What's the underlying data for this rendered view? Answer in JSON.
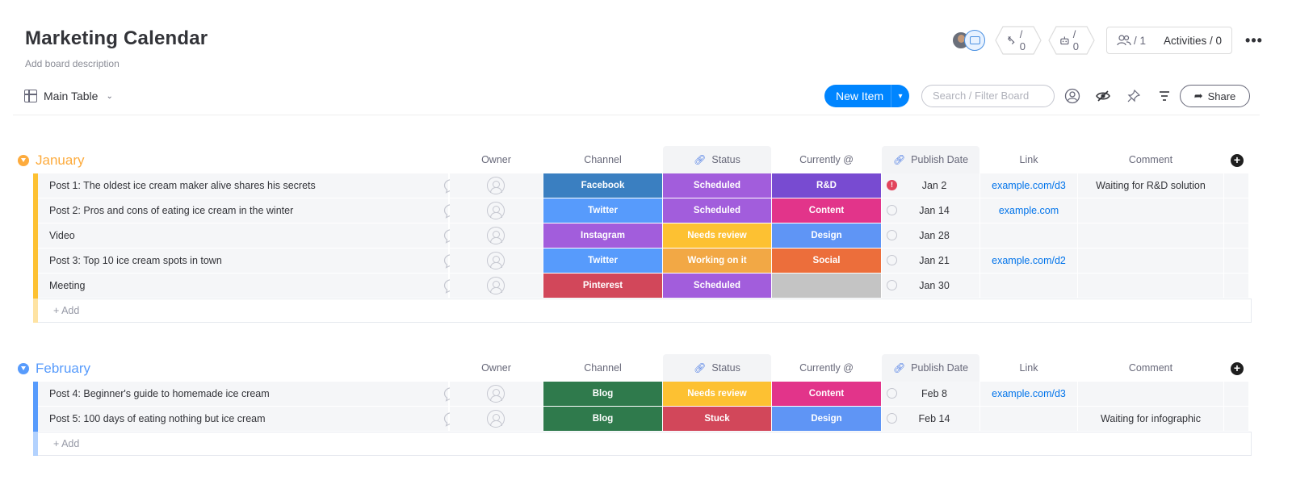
{
  "board": {
    "title": "Marketing Calendar",
    "description": "Add board description"
  },
  "header": {
    "integrations_count": "/ 0",
    "automations_count": "/ 0",
    "members_count": "/ 1",
    "activities_label": "Activities / 0"
  },
  "toolbar": {
    "view_label": "Main Table",
    "new_item_label": "New Item",
    "search_placeholder": "Search / Filter Board",
    "share_label": "Share"
  },
  "columns": {
    "owner": "Owner",
    "channel": "Channel",
    "status": "Status",
    "currently": "Currently @",
    "publish_date": "Publish Date",
    "link": "Link",
    "comment": "Comment"
  },
  "add_label": "+ Add",
  "colors": {
    "january": "#fdab3d",
    "february": "#579bfc",
    "blue_accent": "#0085ff"
  },
  "groups": [
    {
      "name": "January",
      "color": "#fdab3d",
      "bar_color": "#fdc132",
      "rows": [
        {
          "name": "Post 1: The oldest ice cream maker alive shares his secrets",
          "channel": "Facebook",
          "channel_color": "#3a7fc1",
          "status": "Scheduled",
          "status_color": "#a25ddc",
          "current": "R&D",
          "current_color": "#784bd1",
          "date": "Jan 2",
          "date_alert": true,
          "link": "example.com/d3",
          "comment": "Waiting for R&D solution"
        },
        {
          "name": "Post 2: Pros and cons of eating ice cream in the winter",
          "channel": "Twitter",
          "channel_color": "#579bfc",
          "status": "Scheduled",
          "status_color": "#a25ddc",
          "current": "Content",
          "current_color": "#e2348a",
          "date": "Jan 14",
          "date_alert": false,
          "link": "example.com",
          "comment": ""
        },
        {
          "name": "Video",
          "channel": "Instagram",
          "channel_color": "#a25ddc",
          "status": "Needs review",
          "status_color": "#fdc132",
          "current": "Design",
          "current_color": "#5f95f5",
          "date": "Jan 28",
          "date_alert": false,
          "link": "",
          "comment": ""
        },
        {
          "name": "Post 3: Top 10 ice cream spots in town",
          "channel": "Twitter",
          "channel_color": "#579bfc",
          "status": "Working on it",
          "status_color": "#f2a845",
          "current": "Social",
          "current_color": "#ec6e3b",
          "date": "Jan 21",
          "date_alert": false,
          "link": "example.com/d2",
          "comment": ""
        },
        {
          "name": "Meeting",
          "channel": "Pinterest",
          "channel_color": "#d2475a",
          "status": "Scheduled",
          "status_color": "#a25ddc",
          "current": "",
          "current_color": "#c4c4c4",
          "date": "Jan 30",
          "date_alert": false,
          "link": "",
          "comment": ""
        }
      ]
    },
    {
      "name": "February",
      "color": "#579bfc",
      "bar_color": "#579bfc",
      "rows": [
        {
          "name": "Post 4: Beginner's guide to homemade ice cream",
          "channel": "Blog",
          "channel_color": "#2f7a4c",
          "status": "Needs review",
          "status_color": "#fdc132",
          "current": "Content",
          "current_color": "#e2348a",
          "date": "Feb 8",
          "date_alert": false,
          "link": "example.com/d3",
          "comment": ""
        },
        {
          "name": "Post 5: 100 days of eating nothing but ice cream",
          "channel": "Blog",
          "channel_color": "#2f7a4c",
          "status": "Stuck",
          "status_color": "#d2475a",
          "current": "Design",
          "current_color": "#5f95f5",
          "date": "Feb 14",
          "date_alert": false,
          "link": "",
          "comment": "Waiting for infographic"
        }
      ]
    }
  ]
}
